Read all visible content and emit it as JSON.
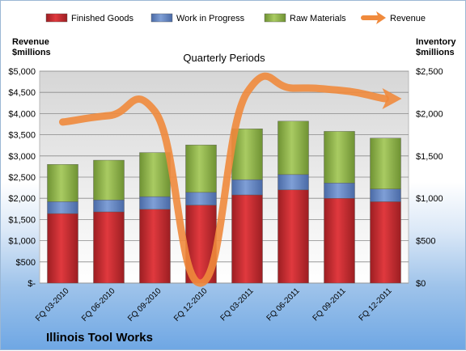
{
  "chart_data": {
    "type": "bar",
    "title": "Quarterly Periods",
    "company": "Illinois Tool Works",
    "left_axis_label": [
      "Revenue",
      "$millions"
    ],
    "right_axis_label": [
      "Inventory",
      "$millions"
    ],
    "categories": [
      "FQ 03-2010",
      "FQ 06-2010",
      "FQ 09-2010",
      "FQ 12-2010",
      "FQ 03-2011",
      "FQ 06-2011",
      "FQ 09-2011",
      "FQ 12-2011"
    ],
    "left_axis": {
      "min": 0,
      "max": 5000,
      "step": 500,
      "ticks": [
        "$-",
        "$500",
        "$1,000",
        "$1,500",
        "$2,000",
        "$2,500",
        "$3,000",
        "$3,500",
        "$4,000",
        "$4,500",
        "$5,000"
      ]
    },
    "right_axis": {
      "min": 0,
      "max": 2500,
      "step": 500,
      "ticks": [
        "$0",
        "$500",
        "$1,000",
        "$1,500",
        "$2,000",
        "$2,500"
      ]
    },
    "series": [
      {
        "name": "Finished Goods",
        "axis": "right",
        "kind": "stacked-bar",
        "color": "#c0282c",
        "values": [
          820,
          840,
          870,
          920,
          1040,
          1100,
          1000,
          960
        ]
      },
      {
        "name": "Work in Progress",
        "axis": "right",
        "kind": "stacked-bar",
        "color": "#5b7fbf",
        "values": [
          140,
          140,
          150,
          150,
          180,
          180,
          180,
          150
        ]
      },
      {
        "name": "Raw Materials",
        "axis": "right",
        "kind": "stacked-bar",
        "color": "#8db347",
        "values": [
          440,
          470,
          520,
          560,
          600,
          630,
          610,
          600
        ]
      },
      {
        "name": "Revenue",
        "axis": "left",
        "kind": "line",
        "color": "#f08a3c",
        "values": [
          3800,
          3950,
          4050,
          0,
          4500,
          4600,
          4550,
          4350
        ]
      }
    ],
    "grid": true,
    "legend": "top"
  }
}
